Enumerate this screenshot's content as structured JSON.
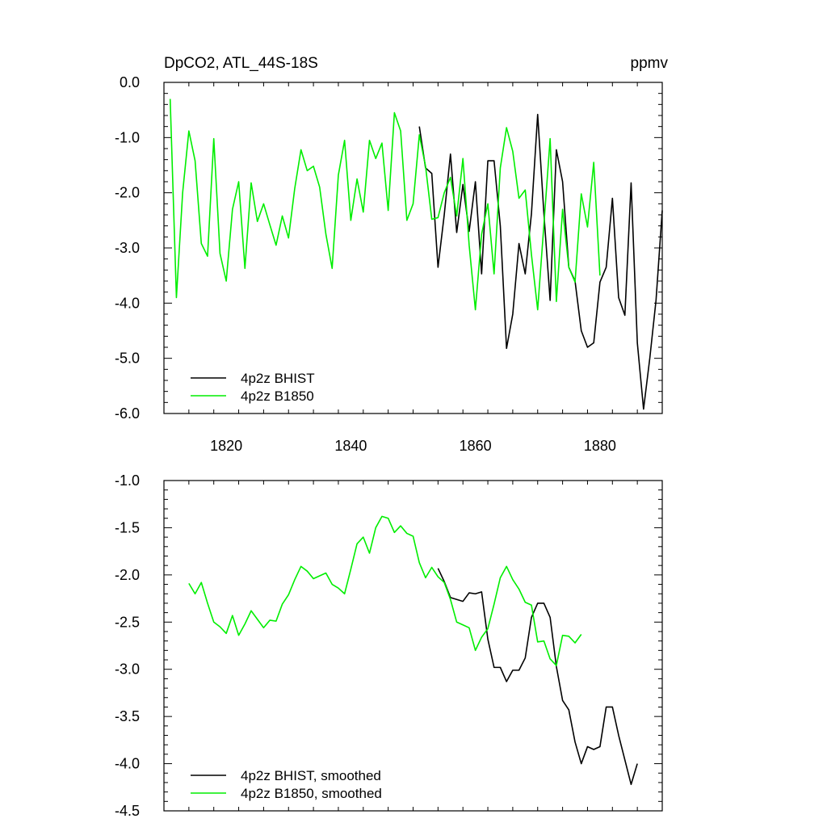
{
  "header": {
    "title": "DpCO2, ATL_44S-18S",
    "units": "ppmv"
  },
  "colors": {
    "bhist": "#000000",
    "b1850": "#00ee00"
  },
  "chart_data": [
    {
      "type": "line",
      "title": "DpCO2, ATL_44S-18S",
      "ylabel": "ppmv",
      "xlim": [
        1810,
        1890
      ],
      "ylim": [
        -6.0,
        0.0
      ],
      "xticks": [
        1820,
        1840,
        1860,
        1880
      ],
      "yticks": [
        0.0,
        -1.0,
        -2.0,
        -3.0,
        -4.0,
        -5.0,
        -6.0
      ],
      "ytick_labels": [
        "0.0",
        "-1.0",
        "-2.0",
        "-3.0",
        "-4.0",
        "-5.0",
        "-6.0"
      ],
      "legend": "bottom-left",
      "series": [
        {
          "name": "4p2z BHIST",
          "color": "#000000",
          "x_start": 1851,
          "values": [
            -0.8,
            -1.55,
            -1.65,
            -3.35,
            -2.4,
            -1.3,
            -2.72,
            -1.85,
            -2.7,
            -1.8,
            -3.47,
            -1.42,
            -1.42,
            -2.6,
            -4.82,
            -4.2,
            -2.92,
            -3.47,
            -2.38,
            -0.58,
            -2.38,
            -3.95,
            -1.22,
            -1.8,
            -3.35,
            -3.6,
            -4.5,
            -4.8,
            -4.72,
            -3.62,
            -3.35,
            -2.1,
            -3.9,
            -4.22,
            -1.82,
            -4.72,
            -5.92,
            -5.0,
            -3.95,
            -2.32
          ]
        },
        {
          "name": "4p2z B1850",
          "color": "#00ee00",
          "x_start": 1811,
          "values": [
            -0.3,
            -3.9,
            -2.0,
            -0.88,
            -1.42,
            -2.92,
            -3.15,
            -1.02,
            -3.1,
            -3.6,
            -2.3,
            -1.8,
            -3.37,
            -1.82,
            -2.52,
            -2.2,
            -2.58,
            -2.95,
            -2.42,
            -2.82,
            -1.92,
            -1.22,
            -1.6,
            -1.52,
            -1.9,
            -2.75,
            -3.37,
            -1.68,
            -1.05,
            -2.5,
            -1.75,
            -2.35,
            -1.05,
            -1.38,
            -1.1,
            -2.32,
            -0.55,
            -0.88,
            -2.5,
            -2.2,
            -0.95,
            -1.52,
            -2.48,
            -2.45,
            -2.0,
            -1.72,
            -2.42,
            -1.38,
            -2.95,
            -4.12,
            -2.75,
            -2.2,
            -3.47,
            -1.55,
            -0.82,
            -1.25,
            -2.1,
            -1.95,
            -3.12,
            -4.12,
            -2.58,
            -1.02,
            -3.97,
            -2.3,
            -3.35,
            -3.62,
            -2.02,
            -2.62,
            -1.45,
            -3.5
          ]
        }
      ]
    },
    {
      "type": "line",
      "title": "",
      "xlim": [
        1810,
        1890
      ],
      "ylim": [
        -4.5,
        -1.0
      ],
      "xticks": [
        1820,
        1840,
        1860,
        1880
      ],
      "yticks": [
        -1.0,
        -1.5,
        -2.0,
        -2.5,
        -3.0,
        -3.5,
        -4.0,
        -4.5
      ],
      "ytick_labels": [
        "-1.0",
        "-1.5",
        "-2.0",
        "-2.5",
        "-3.0",
        "-3.5",
        "-4.0",
        "-4.5"
      ],
      "legend": "bottom-left",
      "series": [
        {
          "name": "4p2z BHIST, smoothed",
          "color": "#000000",
          "x_start": 1854,
          "values": [
            -1.93,
            -2.07,
            -2.24,
            -2.26,
            -2.28,
            -2.19,
            -2.2,
            -2.18,
            -2.68,
            -2.98,
            -2.98,
            -3.13,
            -3.01,
            -3.01,
            -2.88,
            -2.45,
            -2.3,
            -2.3,
            -2.45,
            -2.97,
            -3.33,
            -3.43,
            -3.77,
            -4.0,
            -3.82,
            -3.85,
            -3.82,
            -3.4,
            -3.4,
            -3.7,
            -3.96,
            -4.22,
            -4.0
          ]
        },
        {
          "name": "4p2z B1850, smoothed",
          "color": "#00ee00",
          "x_start": 1814,
          "values": [
            -2.09,
            -2.2,
            -2.08,
            -2.3,
            -2.5,
            -2.55,
            -2.62,
            -2.43,
            -2.64,
            -2.52,
            -2.38,
            -2.47,
            -2.56,
            -2.48,
            -2.49,
            -2.31,
            -2.21,
            -2.05,
            -1.91,
            -1.96,
            -2.04,
            -2.01,
            -1.98,
            -2.1,
            -2.14,
            -2.2,
            -1.94,
            -1.67,
            -1.6,
            -1.77,
            -1.5,
            -1.38,
            -1.4,
            -1.55,
            -1.48,
            -1.56,
            -1.59,
            -1.87,
            -2.03,
            -1.92,
            -2.02,
            -2.08,
            -2.26,
            -2.5,
            -2.53,
            -2.56,
            -2.8,
            -2.66,
            -2.57,
            -2.31,
            -2.03,
            -1.91,
            -2.05,
            -2.15,
            -2.29,
            -2.32,
            -2.71,
            -2.7,
            -2.89,
            -2.96,
            -2.64,
            -2.65,
            -2.72,
            -2.63
          ]
        }
      ]
    }
  ]
}
